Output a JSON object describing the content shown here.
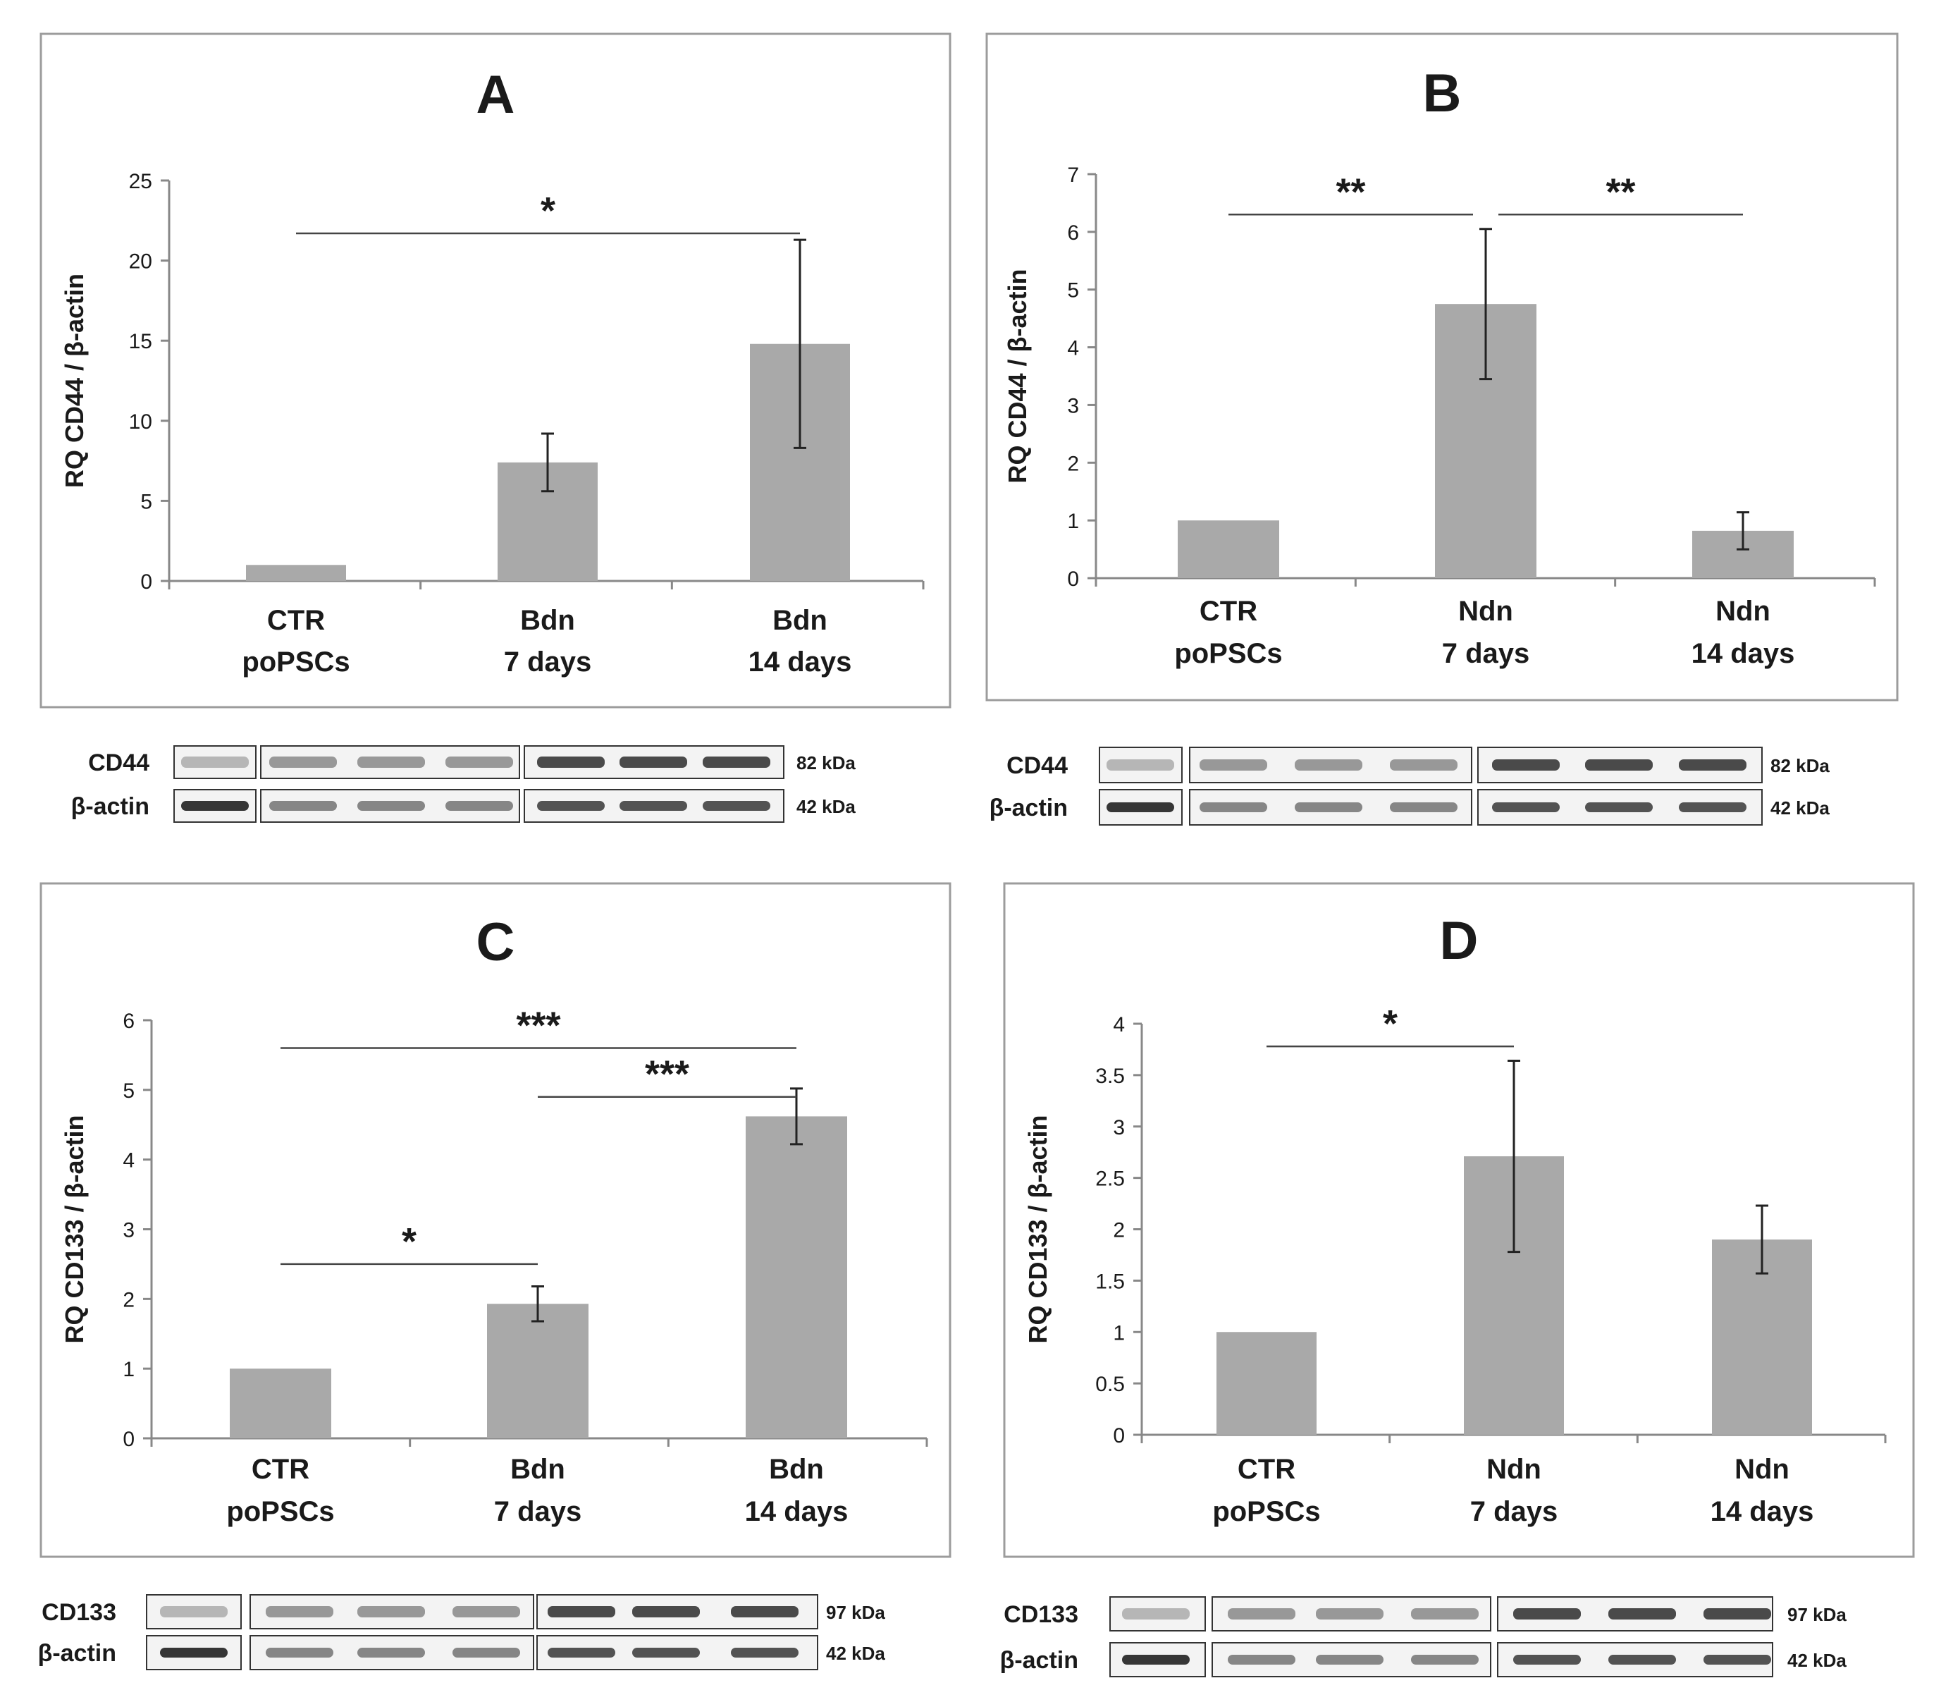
{
  "chart_data": [
    {
      "panel": "A",
      "type": "bar",
      "title": "A",
      "ylabel": "RQ CD44 / β-actin",
      "xlabel": "",
      "categories": [
        [
          "CTR",
          "poPSCs"
        ],
        [
          "Bdn",
          "7 days"
        ],
        [
          "Bdn",
          "14 days"
        ]
      ],
      "values": [
        1,
        7.4,
        14.8
      ],
      "errors": [
        0,
        1.8,
        6.5
      ],
      "yticks": [
        "0",
        "5",
        "10",
        "15",
        "20",
        "25"
      ],
      "ylim": [
        0,
        25
      ],
      "significance": [
        {
          "from": 0,
          "to": 2,
          "label": "*",
          "y": 21.7
        }
      ],
      "blot": {
        "rows": [
          {
            "label": "CD44",
            "kda": "82 kDa"
          },
          {
            "label": "β-actin",
            "kda": "42 kDa"
          }
        ]
      }
    },
    {
      "panel": "B",
      "type": "bar",
      "title": "B",
      "ylabel": "RQ CD44 / β-actin",
      "xlabel": "",
      "categories": [
        [
          "CTR",
          "poPSCs"
        ],
        [
          "Ndn",
          "7 days"
        ],
        [
          "Ndn",
          "14 days"
        ]
      ],
      "values": [
        1,
        4.75,
        0.82
      ],
      "errors": [
        0,
        1.3,
        0.32
      ],
      "yticks": [
        "0",
        "1",
        "2",
        "3",
        "4",
        "5",
        "6",
        "7"
      ],
      "ylim": [
        0,
        7
      ],
      "significance": [
        {
          "from": 0,
          "to": 1,
          "label": "**",
          "y": 6.3
        },
        {
          "from": 1,
          "to": 2,
          "label": "**",
          "y": 6.3
        }
      ],
      "blot": {
        "rows": [
          {
            "label": "CD44",
            "kda": "82 kDa"
          },
          {
            "label": "β-actin",
            "kda": "42 kDa"
          }
        ]
      }
    },
    {
      "panel": "C",
      "type": "bar",
      "title": "C",
      "ylabel": "RQ CD133 / β-actin",
      "xlabel": "",
      "categories": [
        [
          "CTR",
          "poPSCs"
        ],
        [
          "Bdn",
          "7 days"
        ],
        [
          "Bdn",
          "14 days"
        ]
      ],
      "values": [
        1,
        1.93,
        4.62
      ],
      "errors": [
        0,
        0.25,
        0.4
      ],
      "yticks": [
        "0",
        "1",
        "2",
        "3",
        "4",
        "5",
        "6"
      ],
      "ylim": [
        0,
        6
      ],
      "significance": [
        {
          "from": 0,
          "to": 2,
          "label": "***",
          "y": 5.6
        },
        {
          "from": 1,
          "to": 2,
          "label": "***",
          "y": 4.9
        },
        {
          "from": 0,
          "to": 1,
          "label": "*",
          "y": 2.5
        }
      ],
      "blot": {
        "rows": [
          {
            "label": "CD133",
            "kda": "97 kDa"
          },
          {
            "label": "β-actin",
            "kda": "42 kDa"
          }
        ]
      }
    },
    {
      "panel": "D",
      "type": "bar",
      "title": "D",
      "ylabel": "RQ CD133 / β-actin",
      "xlabel": "",
      "categories": [
        [
          "CTR",
          "poPSCs"
        ],
        [
          "Ndn",
          "7 days"
        ],
        [
          "Ndn",
          "14 days"
        ]
      ],
      "values": [
        1,
        2.71,
        1.9
      ],
      "errors": [
        0,
        0.93,
        0.33
      ],
      "yticks": [
        "0",
        "0.5",
        "1",
        "1.5",
        "2",
        "2.5",
        "3",
        "3.5",
        "4"
      ],
      "ylim": [
        0,
        4
      ],
      "significance": [
        {
          "from": 0,
          "to": 1,
          "label": "*",
          "y": 3.78
        }
      ],
      "blot": {
        "rows": [
          {
            "label": "CD133",
            "kda": "97 kDa"
          },
          {
            "label": "β-actin",
            "kda": "42 kDa"
          }
        ]
      }
    }
  ],
  "colors": {
    "bar": "#a9a9a9",
    "axis": "#888888",
    "frame": "#9c9c9c",
    "text": "#1a1a1a",
    "band": "#2b2b2b"
  }
}
